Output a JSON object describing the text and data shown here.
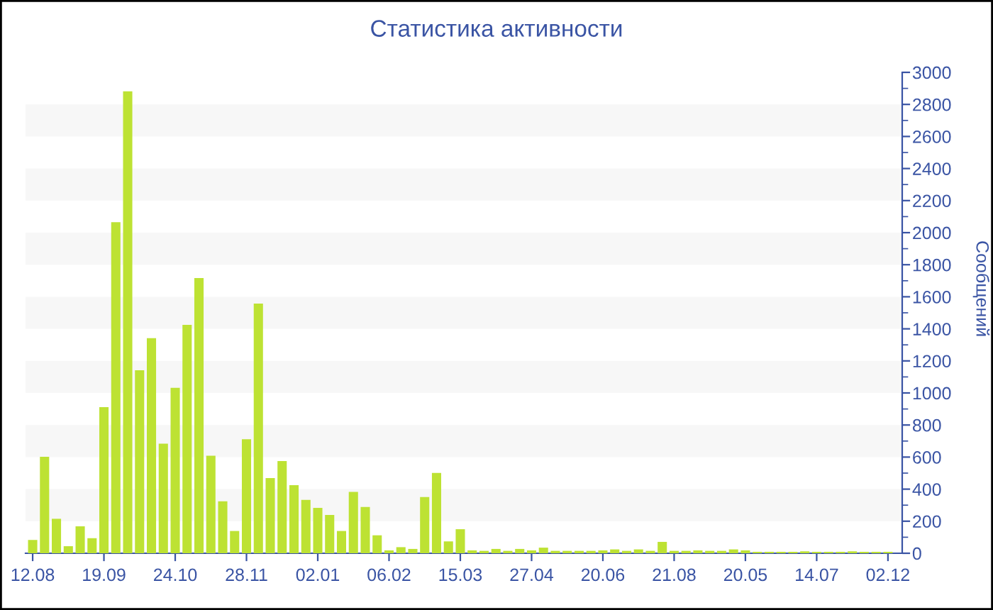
{
  "chart_data": {
    "type": "bar",
    "title": "Статистика активности",
    "ylabel": "Сообщений",
    "categories": [
      "12.08",
      null,
      null,
      null,
      null,
      null,
      "19.09",
      null,
      null,
      null,
      null,
      null,
      "24.10",
      null,
      null,
      null,
      null,
      null,
      "28.11",
      null,
      null,
      null,
      null,
      null,
      "02.01",
      null,
      null,
      null,
      null,
      null,
      "06.02",
      null,
      null,
      null,
      null,
      null,
      "15.03",
      null,
      null,
      null,
      null,
      null,
      "27.04",
      null,
      null,
      null,
      null,
      null,
      "20.06",
      null,
      null,
      null,
      null,
      null,
      "21.08",
      null,
      null,
      null,
      null,
      null,
      "20.05",
      null,
      null,
      null,
      null,
      null,
      "14.07",
      null,
      null,
      null,
      null,
      null,
      "02.12"
    ],
    "series": [
      {
        "color": "#bde233",
        "values": [
          83,
          602,
          215,
          44,
          168,
          94,
          912,
          2065,
          2882,
          1142,
          1342,
          684,
          1032,
          1425,
          1717,
          608,
          324,
          139,
          711,
          1558,
          469,
          575,
          425,
          333,
          283,
          239,
          139,
          383,
          289,
          112,
          18,
          38,
          27,
          351,
          501,
          74,
          150,
          18,
          15,
          27,
          15,
          27,
          18,
          35,
          15,
          15,
          15,
          15,
          18,
          24,
          15,
          24,
          15,
          71,
          15,
          15,
          18,
          15,
          15,
          24,
          18,
          9,
          9,
          9,
          9,
          12,
          9,
          9,
          9,
          12,
          9,
          9,
          9
        ]
      }
    ],
    "ylim": [
      0,
      3000
    ],
    "yticks": [
      0,
      200,
      400,
      600,
      800,
      1000,
      1200,
      1400,
      1600,
      1800,
      2000,
      2200,
      2400,
      2600,
      2800,
      3000
    ],
    "bands": [
      {
        "axis": "y",
        "from": 200,
        "to": 400,
        "color": "#f7f7f7"
      },
      {
        "axis": "y",
        "from": 600,
        "to": 800,
        "color": "#f7f7f7"
      },
      {
        "axis": "y",
        "from": 1000,
        "to": 1200,
        "color": "#f7f7f7"
      },
      {
        "axis": "y",
        "from": 1400,
        "to": 1600,
        "color": "#f7f7f7"
      },
      {
        "axis": "y",
        "from": 1800,
        "to": 2000,
        "color": "#f7f7f7"
      },
      {
        "axis": "y",
        "from": 2200,
        "to": 2400,
        "color": "#f7f7f7"
      },
      {
        "axis": "y",
        "from": 2600,
        "to": 2800,
        "color": "#f7f7f7"
      }
    ],
    "grid": false,
    "legend": false
  }
}
